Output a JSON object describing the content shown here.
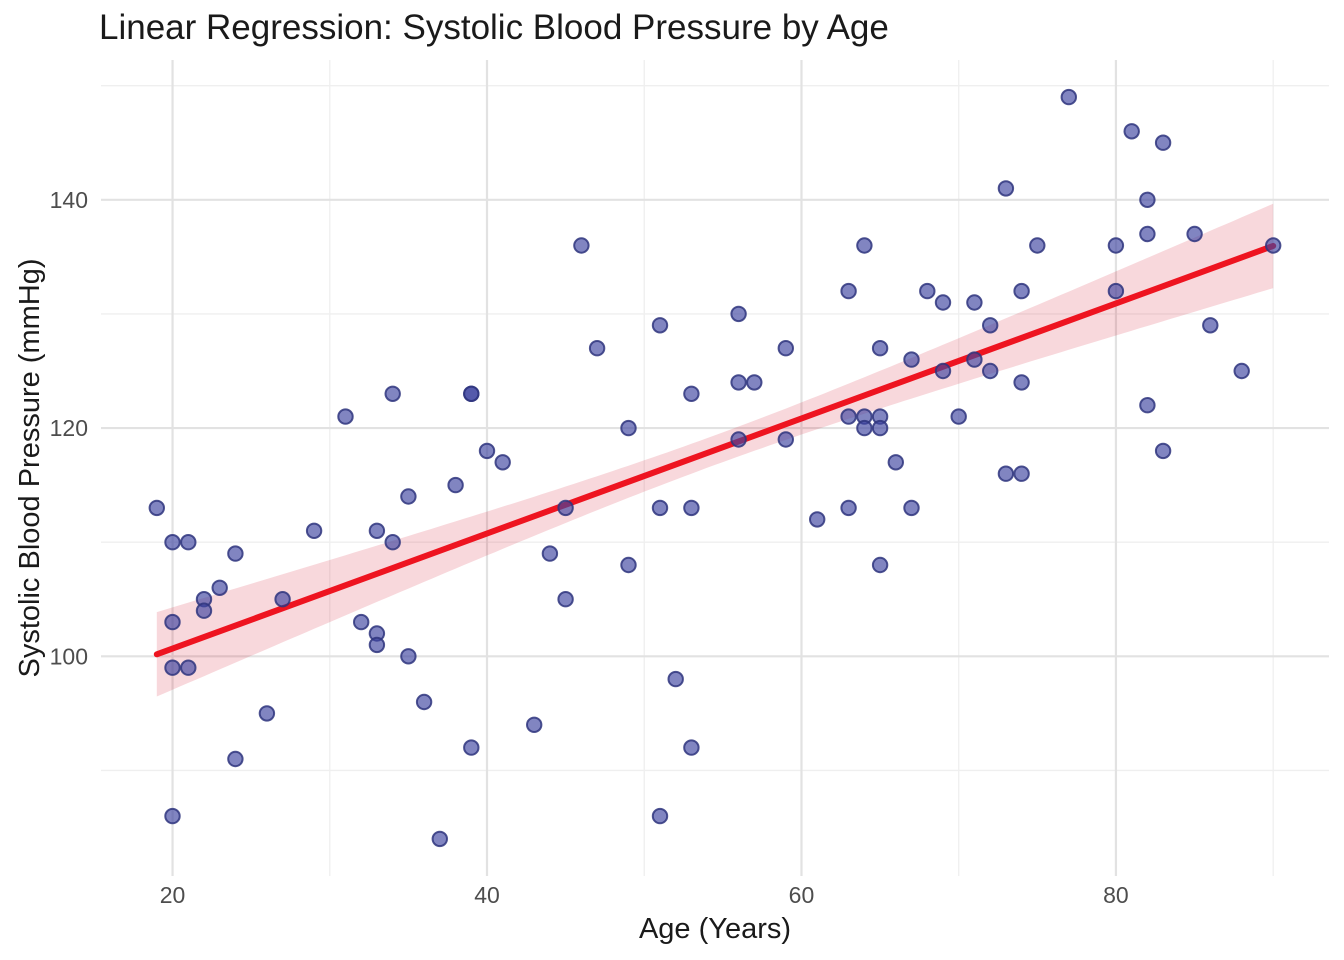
{
  "chart_data": {
    "type": "scatter",
    "title": "Linear Regression: Systolic Blood Pressure by Age",
    "x_axis": {
      "label": "Age (Years)",
      "lim": [
        15.45,
        93.55
      ],
      "major_ticks": [
        20,
        40,
        60,
        80
      ],
      "minor_gridlines": [
        30,
        50,
        70,
        90
      ]
    },
    "y_axis": {
      "label": "Systolic Blood Pressure (mmHg)",
      "lim": [
        80.75,
        152.25
      ],
      "major_ticks": [
        100,
        120,
        140
      ],
      "minor_gridlines": [
        90,
        110,
        130,
        150
      ]
    },
    "grid": true,
    "legend_position": "none",
    "points": [
      [
        19,
        113
      ],
      [
        20,
        110
      ],
      [
        20,
        103
      ],
      [
        20,
        99
      ],
      [
        20,
        86
      ],
      [
        21,
        110
      ],
      [
        21,
        99
      ],
      [
        22,
        105
      ],
      [
        22,
        104
      ],
      [
        23,
        106
      ],
      [
        24,
        109
      ],
      [
        24,
        91
      ],
      [
        26,
        95
      ],
      [
        27,
        105
      ],
      [
        29,
        111
      ],
      [
        31,
        121
      ],
      [
        32,
        103
      ],
      [
        33,
        111
      ],
      [
        33,
        102
      ],
      [
        33,
        101
      ],
      [
        34,
        123
      ],
      [
        34,
        110
      ],
      [
        35,
        114
      ],
      [
        35,
        100
      ],
      [
        36,
        96
      ],
      [
        37,
        84
      ],
      [
        38,
        115
      ],
      [
        39,
        123
      ],
      [
        39,
        123
      ],
      [
        39,
        92
      ],
      [
        40,
        118
      ],
      [
        41,
        117
      ],
      [
        43,
        94
      ],
      [
        44,
        109
      ],
      [
        45,
        113
      ],
      [
        45,
        105
      ],
      [
        46,
        136
      ],
      [
        47,
        127
      ],
      [
        49,
        120
      ],
      [
        49,
        108
      ],
      [
        51,
        129
      ],
      [
        51,
        113
      ],
      [
        51,
        86
      ],
      [
        52,
        98
      ],
      [
        53,
        123
      ],
      [
        53,
        113
      ],
      [
        53,
        92
      ],
      [
        56,
        130
      ],
      [
        56,
        124
      ],
      [
        56,
        119
      ],
      [
        57,
        124
      ],
      [
        59,
        127
      ],
      [
        59,
        119
      ],
      [
        61,
        112
      ],
      [
        63,
        132
      ],
      [
        63,
        121
      ],
      [
        63,
        113
      ],
      [
        64,
        136
      ],
      [
        64,
        121
      ],
      [
        64,
        120
      ],
      [
        65,
        127
      ],
      [
        65,
        121
      ],
      [
        65,
        120
      ],
      [
        65,
        108
      ],
      [
        66,
        117
      ],
      [
        67,
        126
      ],
      [
        67,
        113
      ],
      [
        68,
        132
      ],
      [
        69,
        131
      ],
      [
        69,
        125
      ],
      [
        70,
        121
      ],
      [
        71,
        131
      ],
      [
        71,
        126
      ],
      [
        72,
        129
      ],
      [
        72,
        125
      ],
      [
        73,
        141
      ],
      [
        73,
        116
      ],
      [
        74,
        132
      ],
      [
        74,
        124
      ],
      [
        74,
        116
      ],
      [
        75,
        136
      ],
      [
        77,
        149
      ],
      [
        80,
        136
      ],
      [
        80,
        132
      ],
      [
        81,
        146
      ],
      [
        82,
        140
      ],
      [
        82,
        137
      ],
      [
        82,
        122
      ],
      [
        83,
        145
      ],
      [
        83,
        118
      ],
      [
        85,
        137
      ],
      [
        86,
        129
      ],
      [
        88,
        125
      ],
      [
        90,
        136
      ]
    ],
    "regression": {
      "slope": 0.504,
      "intercept": 90.6,
      "age_start": 19,
      "age_end": 90,
      "ci": {
        "halfwidth_min": 1.3,
        "center_age": 54.5,
        "halfwidth_growth_k": 0.009522
      }
    },
    "colors": {
      "point_fill": "#3d44a0",
      "point_fill_opacity": 0.65,
      "point_stroke": "#2f357e",
      "point_stroke_opacity": 0.85,
      "regression_line": "#ee1420",
      "band_fill": "#d20a23",
      "band_opacity": 0.16,
      "grid_major": "#e2e2e2",
      "grid_minor": "#efefef",
      "title_color": "#1a1a1a",
      "tick_color": "#4d4d4d"
    }
  }
}
